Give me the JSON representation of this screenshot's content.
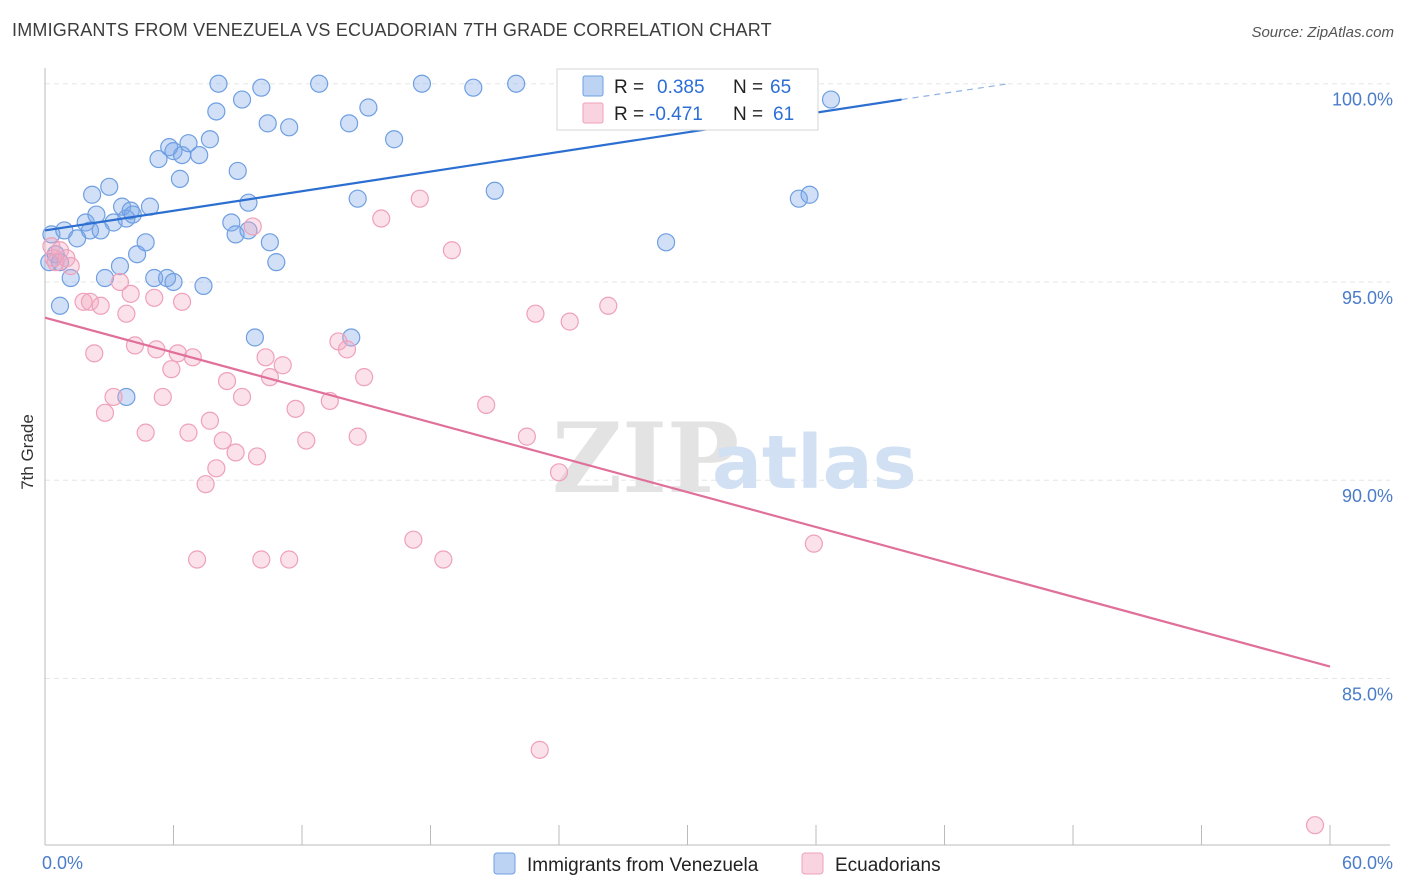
{
  "header": {
    "title": "IMMIGRANTS FROM VENEZUELA VS ECUADORIAN 7TH GRADE CORRELATION CHART",
    "source": "Source: ZipAtlas.com"
  },
  "watermark": {
    "zip": "ZIP",
    "atlas": "atlas"
  },
  "legend_top": {
    "r_label": "R =",
    "n_label": "N =",
    "rows": [
      {
        "r_value": "0.385",
        "n_value": "65",
        "color": "#7aa7e8"
      },
      {
        "r_value": "-0.471",
        "n_value": "61",
        "color": "#f4a9c1"
      }
    ]
  },
  "legend_bottom": {
    "items": [
      {
        "label": "Immigrants from Venezuela",
        "color": "#7aa7e8"
      },
      {
        "label": "Ecuadorians",
        "color": "#f4a9c1"
      }
    ]
  },
  "chart_data": {
    "type": "scatter",
    "ylabel": "7th Grade",
    "xlim": [
      0,
      60
    ],
    "ylim": [
      80.8,
      100.8
    ],
    "x_tick_labels": [
      {
        "x": 0,
        "label": "0.0%"
      },
      {
        "x": 60,
        "label": "60.0%"
      }
    ],
    "y_tick_labels": [
      {
        "y": 100,
        "label": "100.0%"
      },
      {
        "y": 95,
        "label": "95.0%"
      },
      {
        "y": 90,
        "label": "90.0%"
      },
      {
        "y": 85,
        "label": "85.0%"
      }
    ],
    "grid": true,
    "series": [
      {
        "name": "Immigrants from Venezuela",
        "color": "#7aa7e8",
        "trend": {
          "x0": 0,
          "y0": 96.3,
          "x1": 40,
          "y1": 99.6,
          "dash_to_x": 45,
          "dash_to_y": 100.0
        },
        "points": [
          [
            0.2,
            95.5
          ],
          [
            0.3,
            96.2
          ],
          [
            0.5,
            95.7
          ],
          [
            0.7,
            95.5
          ],
          [
            0.7,
            94.4
          ],
          [
            0.9,
            96.3
          ],
          [
            1.2,
            95.1
          ],
          [
            1.5,
            96.1
          ],
          [
            1.9,
            96.5
          ],
          [
            2.1,
            96.3
          ],
          [
            2.2,
            97.2
          ],
          [
            2.4,
            96.7
          ],
          [
            2.6,
            96.3
          ],
          [
            2.8,
            95.1
          ],
          [
            3.0,
            97.4
          ],
          [
            3.2,
            96.5
          ],
          [
            3.5,
            95.4
          ],
          [
            3.6,
            96.9
          ],
          [
            3.8,
            96.6
          ],
          [
            4.0,
            96.8
          ],
          [
            4.1,
            96.7
          ],
          [
            4.3,
            95.7
          ],
          [
            4.7,
            96.0
          ],
          [
            4.9,
            96.9
          ],
          [
            5.1,
            95.1
          ],
          [
            5.3,
            98.1
          ],
          [
            5.7,
            95.1
          ],
          [
            5.8,
            98.4
          ],
          [
            6.0,
            98.3
          ],
          [
            6.3,
            97.6
          ],
          [
            6.4,
            98.2
          ],
          [
            6.7,
            98.5
          ],
          [
            7.2,
            98.2
          ],
          [
            7.4,
            94.9
          ],
          [
            7.7,
            98.6
          ],
          [
            8.0,
            99.3
          ],
          [
            8.1,
            100.0
          ],
          [
            8.7,
            96.5
          ],
          [
            8.9,
            96.2
          ],
          [
            9.0,
            97.8
          ],
          [
            9.2,
            99.6
          ],
          [
            9.5,
            97.0
          ],
          [
            9.8,
            93.6
          ],
          [
            10.1,
            99.9
          ],
          [
            10.4,
            99.0
          ],
          [
            10.5,
            96.0
          ],
          [
            10.8,
            95.5
          ],
          [
            11.4,
            98.9
          ],
          [
            12.8,
            100.0
          ],
          [
            14.2,
            99.0
          ],
          [
            14.3,
            93.6
          ],
          [
            14.6,
            97.1
          ],
          [
            15.1,
            99.4
          ],
          [
            16.3,
            98.6
          ],
          [
            17.6,
            100.0
          ],
          [
            20.0,
            99.9
          ],
          [
            21.0,
            97.3
          ],
          [
            22.0,
            100.0
          ],
          [
            29.0,
            96.0
          ],
          [
            35.2,
            97.1
          ],
          [
            35.7,
            97.2
          ],
          [
            36.7,
            99.6
          ],
          [
            3.8,
            92.1
          ],
          [
            9.5,
            96.3
          ],
          [
            6.0,
            95.0
          ]
        ]
      },
      {
        "name": "Ecuadorians",
        "color": "#f4a9c1",
        "trend": {
          "x0": 0,
          "y0": 94.1,
          "x1": 60,
          "y1": 85.3
        },
        "points": [
          [
            0.3,
            95.9
          ],
          [
            0.4,
            95.6
          ],
          [
            0.5,
            95.5
          ],
          [
            0.7,
            95.8
          ],
          [
            1.0,
            95.6
          ],
          [
            1.2,
            95.4
          ],
          [
            1.8,
            94.5
          ],
          [
            2.1,
            94.5
          ],
          [
            2.3,
            93.2
          ],
          [
            2.6,
            94.4
          ],
          [
            2.8,
            91.7
          ],
          [
            3.2,
            92.1
          ],
          [
            3.5,
            95.0
          ],
          [
            3.8,
            94.2
          ],
          [
            4.0,
            94.7
          ],
          [
            4.2,
            93.4
          ],
          [
            4.7,
            91.2
          ],
          [
            5.1,
            94.6
          ],
          [
            5.2,
            93.3
          ],
          [
            5.5,
            92.1
          ],
          [
            5.9,
            92.8
          ],
          [
            6.2,
            93.2
          ],
          [
            6.4,
            94.5
          ],
          [
            6.7,
            91.2
          ],
          [
            6.9,
            93.1
          ],
          [
            7.5,
            89.9
          ],
          [
            7.7,
            91.5
          ],
          [
            8.0,
            90.3
          ],
          [
            8.3,
            91.0
          ],
          [
            8.5,
            92.5
          ],
          [
            8.9,
            90.7
          ],
          [
            9.2,
            92.1
          ],
          [
            9.7,
            96.4
          ],
          [
            9.9,
            90.6
          ],
          [
            10.3,
            93.1
          ],
          [
            10.5,
            92.6
          ],
          [
            11.1,
            92.9
          ],
          [
            11.7,
            91.8
          ],
          [
            12.2,
            91.0
          ],
          [
            13.3,
            92.0
          ],
          [
            13.7,
            93.5
          ],
          [
            14.1,
            93.3
          ],
          [
            14.6,
            91.1
          ],
          [
            14.9,
            92.6
          ],
          [
            15.7,
            96.6
          ],
          [
            17.2,
            88.5
          ],
          [
            17.5,
            97.1
          ],
          [
            18.6,
            88.0
          ],
          [
            19.0,
            95.8
          ],
          [
            20.6,
            91.9
          ],
          [
            22.5,
            91.1
          ],
          [
            22.9,
            94.2
          ],
          [
            23.1,
            83.2
          ],
          [
            24.0,
            90.2
          ],
          [
            24.5,
            94.0
          ],
          [
            26.3,
            94.4
          ],
          [
            7.1,
            88.0
          ],
          [
            10.1,
            88.0
          ],
          [
            11.4,
            88.0
          ],
          [
            35.9,
            88.4
          ],
          [
            59.3,
            81.3
          ]
        ]
      }
    ]
  }
}
